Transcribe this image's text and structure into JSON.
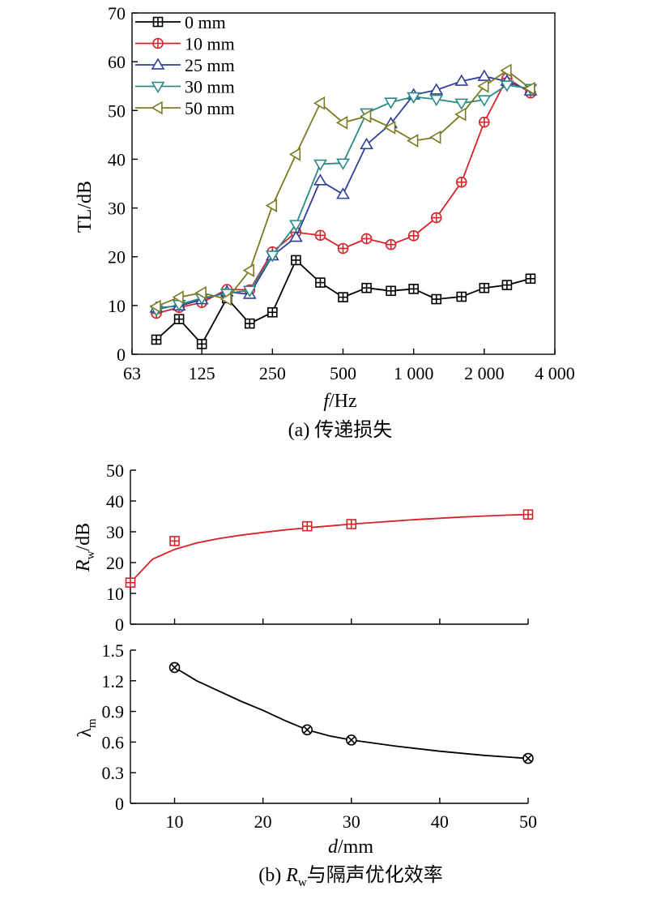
{
  "chart_data": [
    {
      "type": "line",
      "caption": "(a) 传递损失",
      "title": "",
      "xlabel_italic": "f",
      "xlabel_unit": "/Hz",
      "ylabel": "TL/dB",
      "x_scale": "log",
      "xlim": [
        63,
        4000
      ],
      "ylim": [
        0,
        70
      ],
      "xticks": [
        63,
        125,
        250,
        500,
        1000,
        2000,
        4000
      ],
      "xtick_labels": [
        "63",
        "125",
        "250",
        "500",
        "1 000",
        "2 000",
        "4 000"
      ],
      "yticks": [
        0,
        10,
        20,
        30,
        40,
        50,
        60,
        70
      ],
      "ytick_labels": [
        "0",
        "10",
        "20",
        "30",
        "40",
        "50",
        "60",
        "70"
      ],
      "legend_position": "top-left",
      "x": [
        80,
        100,
        125,
        160,
        200,
        250,
        315,
        400,
        500,
        630,
        800,
        1000,
        1250,
        1600,
        2000,
        2500,
        3150
      ],
      "series": [
        {
          "name": "0 mm",
          "color": "#000000",
          "marker": "square-plus",
          "values": [
            3,
            7.2,
            2.1,
            11.5,
            6.3,
            8.6,
            19.3,
            14.7,
            11.7,
            13.6,
            13,
            13.4,
            11.3,
            11.8,
            13.6,
            14.2,
            15.5
          ]
        },
        {
          "name": "10 mm",
          "color": "#d7232a",
          "marker": "circle-plus",
          "values": [
            8.4,
            9.6,
            10.6,
            13.3,
            13.2,
            21,
            25,
            24.4,
            21.7,
            23.7,
            22.5,
            24.3,
            28,
            35.3,
            47.6,
            56.6,
            53.6
          ]
        },
        {
          "name": "25 mm",
          "color": "#2f3f98",
          "marker": "triangle-up",
          "values": [
            9.5,
            9.9,
            11.2,
            12.8,
            12.3,
            20.2,
            24,
            35.6,
            32.8,
            43,
            47.3,
            53.2,
            54.2,
            56,
            57,
            56,
            54
          ]
        },
        {
          "name": "30 mm",
          "color": "#2b8a86",
          "marker": "triangle-down",
          "values": [
            9.1,
            10.2,
            11.5,
            12.5,
            13.1,
            20.3,
            26.6,
            39,
            39.2,
            49.5,
            51.7,
            52.8,
            52.3,
            51.5,
            52.2,
            55.2,
            54.5
          ]
        },
        {
          "name": "50 mm",
          "color": "#7b7b23",
          "marker": "triangle-left",
          "values": [
            9.8,
            11.7,
            12.6,
            11.3,
            17.2,
            30.5,
            41,
            51.5,
            47.5,
            48.8,
            46.5,
            43.8,
            44.5,
            49.2,
            55,
            58.2,
            54.5
          ]
        }
      ]
    },
    {
      "type": "scatter",
      "caption_prefix": "(b) ",
      "caption_italic": "R",
      "caption_sub": "w",
      "caption_rest": "与隔声优化效率",
      "title": "",
      "ylabel_italic": "R",
      "ylabel_sub": "w",
      "ylabel_unit": "/dB",
      "xlim": [
        5,
        50
      ],
      "ylim": [
        0,
        50
      ],
      "yticks": [
        0,
        10,
        20,
        30,
        40,
        50
      ],
      "ytick_labels": [
        "0",
        "10",
        "20",
        "30",
        "40",
        "50"
      ],
      "color": "#d7232a",
      "marker": "square-plus",
      "points": {
        "x": [
          5,
          10,
          25,
          30,
          50
        ],
        "y": [
          13.5,
          27,
          31.8,
          32.5,
          35.6
        ]
      },
      "fit_curve": {
        "x": [
          5,
          7.5,
          10,
          12.5,
          15,
          17.5,
          20,
          22.5,
          25,
          27.5,
          30,
          32.5,
          35,
          37.5,
          40,
          42.5,
          45,
          47.5,
          50
        ],
        "y": [
          13.5,
          21.1,
          24.3,
          26.4,
          27.8,
          28.9,
          29.8,
          30.6,
          31.3,
          31.9,
          32.5,
          33,
          33.5,
          34,
          34.4,
          34.8,
          35.1,
          35.4,
          35.6
        ]
      }
    },
    {
      "type": "line",
      "title": "",
      "xlabel_italic": "d",
      "xlabel_unit": "/mm",
      "ylabel_main": "λ",
      "ylabel_sub": "m",
      "xlim": [
        5,
        50
      ],
      "ylim": [
        0,
        1.5
      ],
      "xticks": [
        10,
        20,
        30,
        40,
        50
      ],
      "xtick_labels": [
        "10",
        "20",
        "30",
        "40",
        "50"
      ],
      "yticks": [
        0,
        0.3,
        0.6,
        0.9,
        1.2,
        1.5
      ],
      "ytick_labels": [
        "0",
        "0.3",
        "0.6",
        "0.9",
        "1.2",
        "1.5"
      ],
      "color": "#000000",
      "marker": "circle-x",
      "points": {
        "x": [
          10,
          25,
          30,
          50
        ],
        "y": [
          1.33,
          0.72,
          0.62,
          0.44
        ]
      },
      "curve": {
        "x": [
          10,
          12.5,
          15,
          17.5,
          20,
          22.5,
          25,
          27.5,
          30,
          35,
          40,
          45,
          50
        ],
        "y": [
          1.33,
          1.2,
          1.1,
          1.0,
          0.91,
          0.81,
          0.72,
          0.66,
          0.62,
          0.56,
          0.51,
          0.47,
          0.44
        ]
      }
    }
  ]
}
